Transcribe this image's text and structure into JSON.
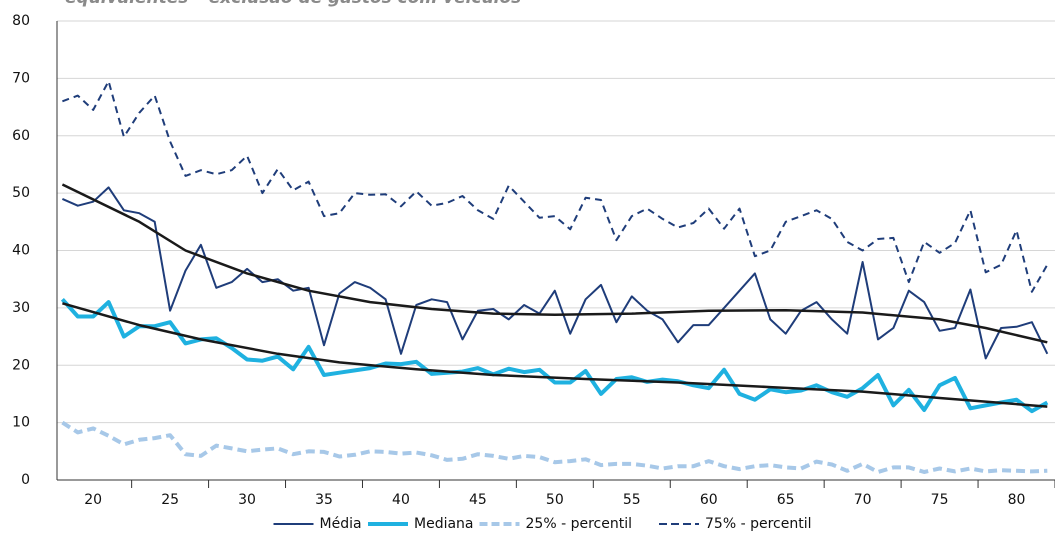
{
  "chart_data": {
    "type": "line",
    "title": "equivalentes – exclusão de gastos com veículos",
    "x": [
      18,
      19,
      20,
      21,
      22,
      23,
      24,
      25,
      26,
      27,
      28,
      29,
      30,
      31,
      32,
      33,
      34,
      35,
      36,
      37,
      38,
      39,
      40,
      41,
      42,
      43,
      44,
      45,
      46,
      47,
      48,
      49,
      50,
      51,
      52,
      53,
      54,
      55,
      56,
      57,
      58,
      59,
      60,
      61,
      62,
      63,
      64,
      65,
      66,
      67,
      68,
      69,
      70,
      71,
      72,
      73,
      74,
      75,
      76,
      77,
      78,
      79,
      80,
      81,
      82
    ],
    "xlim": [
      17.65,
      82.5
    ],
    "xticks": [
      20,
      25,
      30,
      35,
      40,
      45,
      50,
      55,
      60,
      65,
      70,
      75,
      80
    ],
    "ylim": [
      0,
      80
    ],
    "yticks": [
      0,
      10,
      20,
      30,
      40,
      50,
      60,
      70,
      80
    ],
    "grid": true,
    "legend": "bottom",
    "series": [
      {
        "name": "Média",
        "color": "#1f3d7a",
        "dashed": false,
        "width": 2,
        "values": [
          49,
          47.8,
          48.5,
          51,
          47,
          46.5,
          45,
          29.5,
          36.5,
          41,
          33.5,
          34.5,
          36.8,
          34.5,
          35,
          33,
          33.5,
          23.5,
          32.5,
          34.5,
          33.5,
          31.5,
          22,
          30.5,
          31.5,
          31,
          24.5,
          29.5,
          29.8,
          28,
          30.5,
          29,
          33,
          25.5,
          31.5,
          34,
          27.5,
          32,
          29.5,
          28,
          24,
          27,
          27,
          30,
          33,
          36,
          28,
          25.5,
          29.5,
          31,
          28,
          25.5,
          38,
          24.5,
          26.5,
          33,
          31,
          26,
          26.5,
          33.2,
          21.2,
          26.5,
          26.7,
          27.5,
          22
        ]
      },
      {
        "name": "Mediana",
        "color": "#1fb1e0",
        "dashed": false,
        "width": 4,
        "values": [
          31.5,
          28.5,
          28.5,
          31,
          25,
          26.8,
          26.8,
          27.5,
          23.8,
          24.5,
          24.7,
          23,
          21,
          20.8,
          21.5,
          19.3,
          23.2,
          18.3,
          18.7,
          19.1,
          19.5,
          20.3,
          20.2,
          20.6,
          18.5,
          18.7,
          18.9,
          19.5,
          18.4,
          19.4,
          18.8,
          19.2,
          17,
          17,
          19,
          15,
          17.6,
          17.9,
          17.1,
          17.5,
          17.2,
          16.5,
          16,
          19.2,
          15,
          14,
          15.8,
          15.3,
          15.6,
          16.5,
          15.3,
          14.5,
          16,
          18.3,
          13,
          15.7,
          12.2,
          16.5,
          17.8,
          12.5,
          13,
          13.5,
          14,
          12,
          13.5
        ]
      },
      {
        "name": "25% - percentil",
        "color": "#a7c8e8",
        "dashed": true,
        "width": 4,
        "values": [
          10,
          8.3,
          9,
          7.7,
          6.2,
          7,
          7.3,
          7.8,
          4.5,
          4.2,
          6,
          5.5,
          5,
          5.3,
          5.5,
          4.5,
          5,
          4.9,
          4.1,
          4.4,
          5,
          4.9,
          4.6,
          4.8,
          4.3,
          3.5,
          3.7,
          4.5,
          4.2,
          3.7,
          4.2,
          4,
          3.1,
          3.3,
          3.6,
          2.6,
          2.8,
          2.8,
          2.5,
          2,
          2.4,
          2.4,
          3.3,
          2.4,
          1.9,
          2.4,
          2.6,
          2.2,
          2,
          3.2,
          2.7,
          1.6,
          2.8,
          1.4,
          2.2,
          2.2,
          1.4,
          2,
          1.5,
          2,
          1.5,
          1.7,
          1.6,
          1.5,
          1.6
        ]
      },
      {
        "name": "75% - percentil",
        "color": "#1f3d7a",
        "dashed": true,
        "width": 2,
        "values": [
          66,
          67,
          64.5,
          69.5,
          59.8,
          64,
          67,
          59,
          53,
          54,
          53.3,
          54,
          56.5,
          50,
          54.2,
          50.5,
          52,
          46,
          46.5,
          50,
          49.7,
          49.8,
          47.7,
          50.3,
          47.8,
          48.3,
          49.5,
          47,
          45.5,
          51.3,
          48.5,
          45.7,
          46,
          43.7,
          49.2,
          48.8,
          41.8,
          46,
          47.3,
          45.5,
          44,
          44.8,
          47.3,
          43.8,
          47.3,
          39,
          40,
          45,
          46,
          47,
          45.5,
          41.5,
          40,
          42,
          42.2,
          34.5,
          41.5,
          39.6,
          41.3,
          47,
          36.2,
          37.5,
          43.5,
          32.8,
          37.5
        ]
      }
    ],
    "trend_lines": [
      {
        "color": "#1a1a1a",
        "x": [
          18,
          23,
          26,
          30,
          34,
          38,
          42,
          46,
          50,
          55,
          60,
          65,
          70,
          75,
          78,
          82
        ],
        "values": [
          51.5,
          45,
          40,
          36,
          33,
          31,
          29.8,
          29,
          28.8,
          29,
          29.5,
          29.6,
          29.2,
          28,
          26.5,
          24
        ]
      },
      {
        "color": "#1a1a1a",
        "x": [
          18,
          23,
          27,
          32,
          36,
          41,
          46,
          52,
          58,
          64,
          70,
          75,
          82
        ],
        "values": [
          30.8,
          27,
          24.5,
          22,
          20.5,
          19.3,
          18.3,
          17.6,
          17,
          16.2,
          15.4,
          14.3,
          12.8
        ]
      }
    ]
  }
}
